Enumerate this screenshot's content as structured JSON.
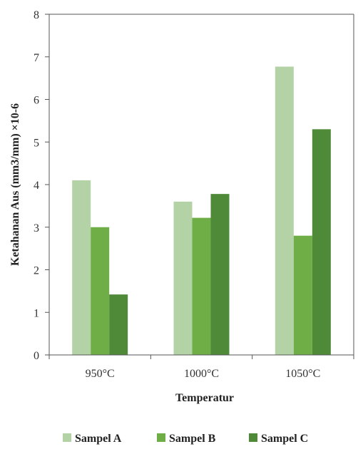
{
  "chart_data": {
    "type": "bar",
    "categories": [
      "950°C",
      "1000°C",
      "1050°C"
    ],
    "series": [
      {
        "name": "Sampel A",
        "values": [
          4.1,
          3.6,
          6.77
        ],
        "color": "#b3d3a6"
      },
      {
        "name": "Sampel B",
        "values": [
          3.0,
          3.22,
          2.8
        ],
        "color": "#6fad47"
      },
      {
        "name": "Sampel C",
        "values": [
          1.42,
          3.78,
          5.3
        ],
        "color": "#4f8a38"
      }
    ],
    "title": "",
    "xlabel": "Temperatur",
    "ylabel": "Ketahanan Aus (mm3/mm) ×10-6",
    "ylim": [
      0,
      8
    ],
    "yticks": [
      "0",
      "1",
      "2",
      "3",
      "4",
      "5",
      "6",
      "7",
      "8"
    ],
    "grid": false,
    "legend_position": "bottom"
  }
}
